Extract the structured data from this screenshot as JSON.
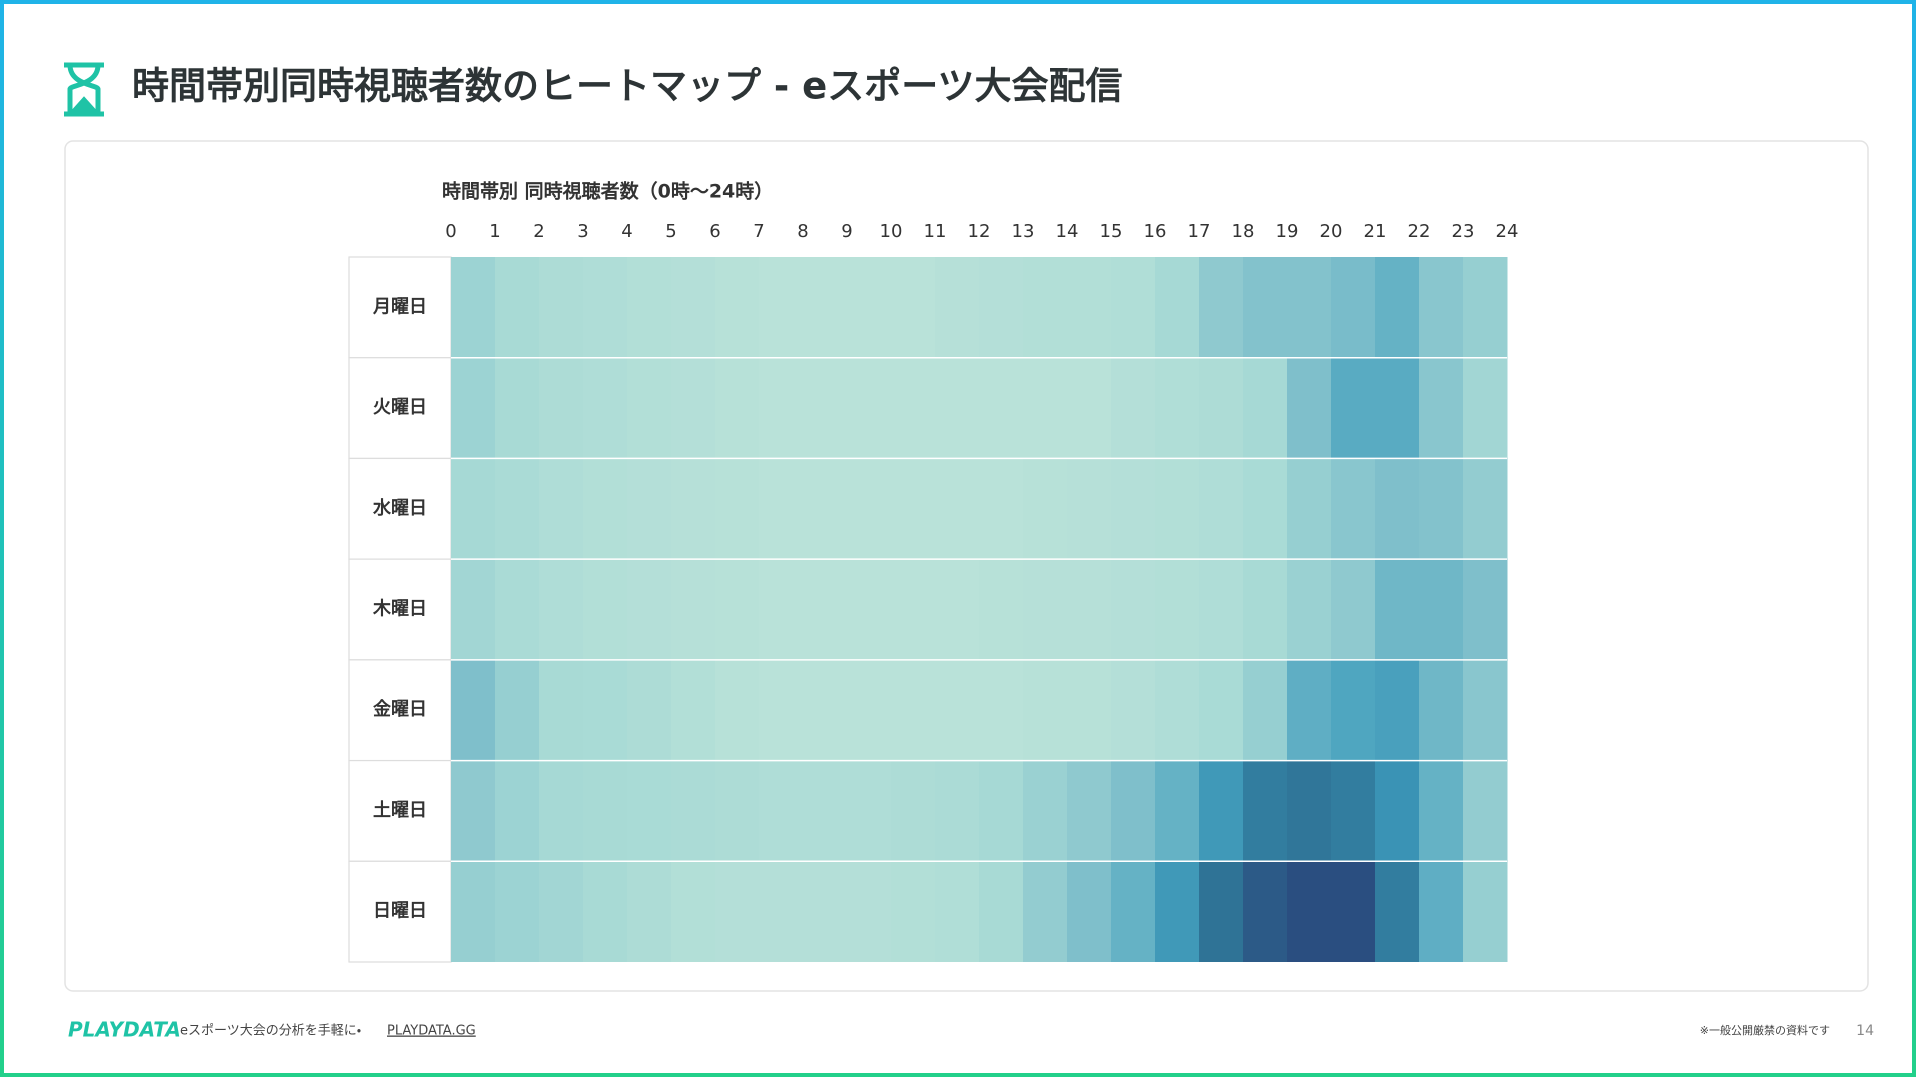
{
  "header": {
    "title": "時間帯別同時視聴者数のヒートマップ - eスポーツ大会配信"
  },
  "chart_data": {
    "type": "heatmap",
    "title": "時間帯別 同時視聴者数（0時〜24時）",
    "xlim": [
      0,
      24
    ],
    "xticks": [
      0,
      1,
      2,
      3,
      4,
      5,
      6,
      7,
      8,
      9,
      10,
      11,
      12,
      13,
      14,
      15,
      16,
      17,
      18,
      19,
      20,
      21,
      22,
      23,
      24
    ],
    "rows": [
      "月曜日",
      "火曜日",
      "水曜日",
      "木曜日",
      "金曜日",
      "土曜日",
      "日曜日"
    ],
    "values": [
      [
        35,
        28,
        22,
        20,
        16,
        14,
        10,
        8,
        8,
        8,
        8,
        12,
        14,
        16,
        16,
        18,
        30,
        42,
        48,
        48,
        52,
        58,
        45,
        38
      ],
      [
        35,
        28,
        22,
        20,
        16,
        14,
        10,
        8,
        8,
        8,
        8,
        8,
        8,
        8,
        8,
        14,
        18,
        22,
        30,
        50,
        62,
        62,
        45,
        32
      ],
      [
        30,
        25,
        20,
        16,
        14,
        12,
        10,
        8,
        8,
        8,
        8,
        8,
        8,
        10,
        12,
        14,
        16,
        20,
        26,
        38,
        45,
        50,
        48,
        40
      ],
      [
        32,
        25,
        20,
        16,
        14,
        12,
        10,
        8,
        8,
        8,
        8,
        8,
        10,
        12,
        12,
        14,
        16,
        20,
        28,
        36,
        42,
        55,
        55,
        50
      ],
      [
        50,
        38,
        28,
        26,
        22,
        16,
        10,
        8,
        8,
        8,
        8,
        8,
        8,
        10,
        10,
        14,
        20,
        26,
        38,
        60,
        65,
        68,
        55,
        45
      ],
      [
        42,
        35,
        30,
        28,
        26,
        24,
        22,
        20,
        20,
        20,
        22,
        24,
        30,
        36,
        42,
        50,
        58,
        72,
        82,
        84,
        82,
        75,
        58,
        40
      ],
      [
        38,
        35,
        32,
        28,
        22,
        16,
        14,
        14,
        14,
        14,
        16,
        18,
        28,
        40,
        50,
        58,
        72,
        85,
        95,
        100,
        100,
        82,
        60,
        38
      ]
    ],
    "vlim": [
      0,
      100
    ],
    "colorscale": [
      [
        0,
        "#c0e5da"
      ],
      [
        30,
        "#a6d9d5"
      ],
      [
        50,
        "#7fbfcb"
      ],
      [
        65,
        "#4fa6c0"
      ],
      [
        75,
        "#3a93b5"
      ],
      [
        85,
        "#2f7396"
      ],
      [
        100,
        "#2a4e80"
      ]
    ]
  },
  "footer": {
    "brand": "PLAYDATA",
    "tagline": "eスポーツ大会の分析を手軽に・",
    "link": "PLAYDATA.GG",
    "notice": "※一般公開厳禁の資料です",
    "page": 14
  }
}
